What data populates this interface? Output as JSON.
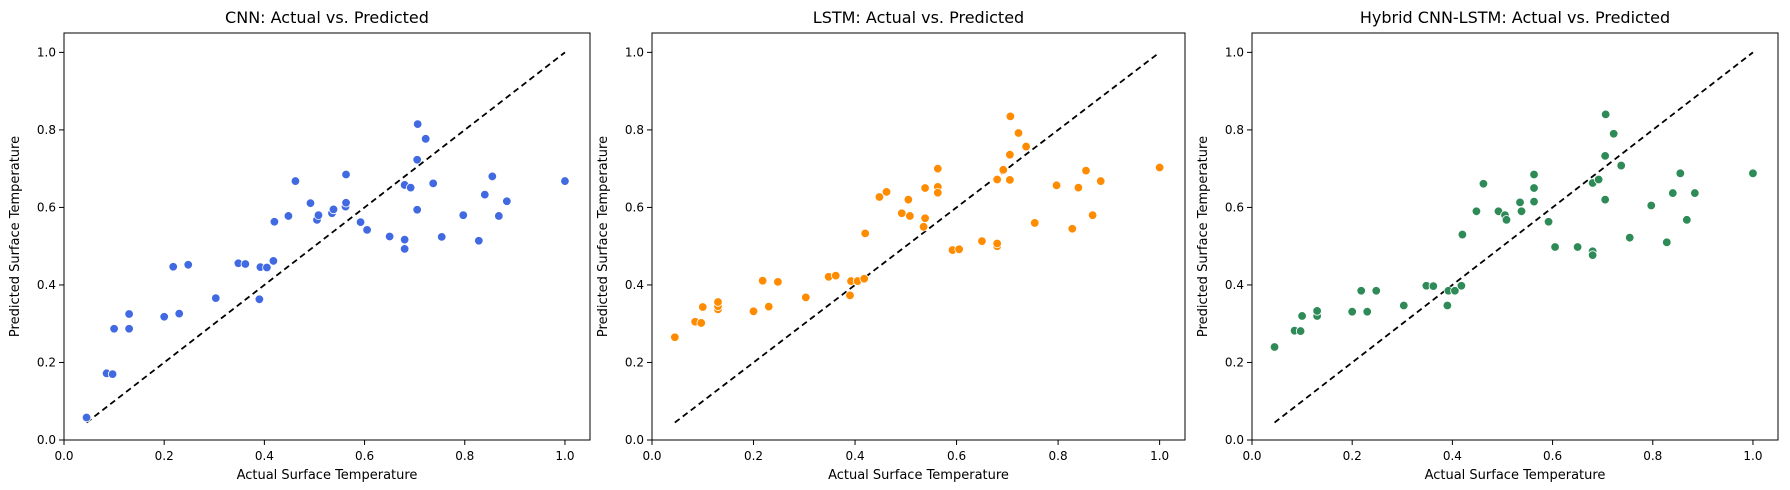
{
  "chart_data": [
    {
      "type": "scatter",
      "title": "CNN: Actual vs. Predicted",
      "xlabel": "Actual Surface Temperature",
      "ylabel": "Predicted Surface Temperature",
      "xlim": [
        0.0,
        1.05
      ],
      "ylim": [
        0.0,
        1.05
      ],
      "xticks": [
        "0.0",
        "0.2",
        "0.4",
        "0.6",
        "0.8",
        "1.0"
      ],
      "yticks": [
        "0.0",
        "0.2",
        "0.4",
        "0.6",
        "0.8",
        "1.0"
      ],
      "grid": false,
      "color": "#4169e1",
      "reference_line": {
        "from": [
          0.045,
          0.045
        ],
        "to": [
          1.0,
          1.0
        ],
        "style": "dashed",
        "color": "#000000"
      },
      "points": [
        [
          0.045,
          0.058
        ],
        [
          0.085,
          0.172
        ],
        [
          0.097,
          0.17
        ],
        [
          0.1,
          0.287
        ],
        [
          0.13,
          0.287
        ],
        [
          0.13,
          0.325
        ],
        [
          0.2,
          0.318
        ],
        [
          0.218,
          0.447
        ],
        [
          0.23,
          0.326
        ],
        [
          0.248,
          0.452
        ],
        [
          0.303,
          0.366
        ],
        [
          0.348,
          0.456
        ],
        [
          0.362,
          0.454
        ],
        [
          0.39,
          0.363
        ],
        [
          0.392,
          0.446
        ],
        [
          0.405,
          0.445
        ],
        [
          0.418,
          0.462
        ],
        [
          0.42,
          0.563
        ],
        [
          0.448,
          0.578
        ],
        [
          0.462,
          0.668
        ],
        [
          0.492,
          0.611
        ],
        [
          0.505,
          0.568
        ],
        [
          0.508,
          0.58
        ],
        [
          0.535,
          0.585
        ],
        [
          0.538,
          0.595
        ],
        [
          0.562,
          0.602
        ],
        [
          0.563,
          0.612
        ],
        [
          0.563,
          0.685
        ],
        [
          0.592,
          0.562
        ],
        [
          0.605,
          0.542
        ],
        [
          0.65,
          0.525
        ],
        [
          0.68,
          0.517
        ],
        [
          0.68,
          0.493
        ],
        [
          0.68,
          0.658
        ],
        [
          0.692,
          0.651
        ],
        [
          0.705,
          0.594
        ],
        [
          0.705,
          0.723
        ],
        [
          0.706,
          0.815
        ],
        [
          0.722,
          0.777
        ],
        [
          0.737,
          0.662
        ],
        [
          0.754,
          0.524
        ],
        [
          0.797,
          0.58
        ],
        [
          0.828,
          0.514
        ],
        [
          0.84,
          0.633
        ],
        [
          0.855,
          0.68
        ],
        [
          0.868,
          0.578
        ],
        [
          0.884,
          0.616
        ],
        [
          1.0,
          0.668
        ]
      ]
    },
    {
      "type": "scatter",
      "title": "LSTM: Actual vs. Predicted",
      "xlabel": "Actual Surface Temperature",
      "ylabel": "Predicted Surface Temperature",
      "xlim": [
        0.0,
        1.05
      ],
      "ylim": [
        0.0,
        1.05
      ],
      "xticks": [
        "0.0",
        "0.2",
        "0.4",
        "0.6",
        "0.8",
        "1.0"
      ],
      "yticks": [
        "0.0",
        "0.2",
        "0.4",
        "0.6",
        "0.8",
        "1.0"
      ],
      "grid": false,
      "color": "#ff8c00",
      "reference_line": {
        "from": [
          0.045,
          0.045
        ],
        "to": [
          1.0,
          1.0
        ],
        "style": "dashed",
        "color": "#000000"
      },
      "points": [
        [
          0.045,
          0.265
        ],
        [
          0.085,
          0.305
        ],
        [
          0.097,
          0.302
        ],
        [
          0.1,
          0.343
        ],
        [
          0.13,
          0.337
        ],
        [
          0.13,
          0.345
        ],
        [
          0.13,
          0.356
        ],
        [
          0.2,
          0.332
        ],
        [
          0.218,
          0.411
        ],
        [
          0.23,
          0.344
        ],
        [
          0.248,
          0.408
        ],
        [
          0.303,
          0.368
        ],
        [
          0.348,
          0.421
        ],
        [
          0.362,
          0.424
        ],
        [
          0.39,
          0.373
        ],
        [
          0.392,
          0.41
        ],
        [
          0.405,
          0.41
        ],
        [
          0.418,
          0.416
        ],
        [
          0.42,
          0.533
        ],
        [
          0.448,
          0.627
        ],
        [
          0.462,
          0.64
        ],
        [
          0.492,
          0.585
        ],
        [
          0.505,
          0.62
        ],
        [
          0.508,
          0.578
        ],
        [
          0.535,
          0.55
        ],
        [
          0.538,
          0.572
        ],
        [
          0.538,
          0.65
        ],
        [
          0.563,
          0.7
        ],
        [
          0.563,
          0.653
        ],
        [
          0.563,
          0.638
        ],
        [
          0.592,
          0.49
        ],
        [
          0.605,
          0.492
        ],
        [
          0.65,
          0.513
        ],
        [
          0.68,
          0.5
        ],
        [
          0.68,
          0.507
        ],
        [
          0.68,
          0.672
        ],
        [
          0.692,
          0.697
        ],
        [
          0.705,
          0.671
        ],
        [
          0.705,
          0.736
        ],
        [
          0.706,
          0.835
        ],
        [
          0.722,
          0.792
        ],
        [
          0.737,
          0.757
        ],
        [
          0.754,
          0.56
        ],
        [
          0.797,
          0.657
        ],
        [
          0.828,
          0.545
        ],
        [
          0.84,
          0.651
        ],
        [
          0.855,
          0.695
        ],
        [
          0.868,
          0.58
        ],
        [
          0.884,
          0.668
        ],
        [
          1.0,
          0.703
        ]
      ]
    },
    {
      "type": "scatter",
      "title": "Hybrid CNN-LSTM: Actual vs. Predicted",
      "xlabel": "Actual Surface Temperature",
      "ylabel": "Predicted Surface Temperature",
      "xlim": [
        0.0,
        1.05
      ],
      "ylim": [
        0.0,
        1.05
      ],
      "xticks": [
        "0.0",
        "0.2",
        "0.4",
        "0.6",
        "0.8",
        "1.0"
      ],
      "yticks": [
        "0.0",
        "0.2",
        "0.4",
        "0.6",
        "0.8",
        "1.0"
      ],
      "grid": false,
      "color": "#2e8b57",
      "reference_line": {
        "from": [
          0.045,
          0.045
        ],
        "to": [
          1.0,
          1.0
        ],
        "style": "dashed",
        "color": "#000000"
      },
      "points": [
        [
          0.045,
          0.24
        ],
        [
          0.085,
          0.282
        ],
        [
          0.097,
          0.281
        ],
        [
          0.1,
          0.32
        ],
        [
          0.13,
          0.32
        ],
        [
          0.13,
          0.333
        ],
        [
          0.2,
          0.331
        ],
        [
          0.218,
          0.385
        ],
        [
          0.23,
          0.331
        ],
        [
          0.248,
          0.385
        ],
        [
          0.303,
          0.347
        ],
        [
          0.348,
          0.398
        ],
        [
          0.362,
          0.397
        ],
        [
          0.39,
          0.347
        ],
        [
          0.392,
          0.385
        ],
        [
          0.405,
          0.385
        ],
        [
          0.418,
          0.398
        ],
        [
          0.42,
          0.53
        ],
        [
          0.448,
          0.59
        ],
        [
          0.462,
          0.661
        ],
        [
          0.492,
          0.59
        ],
        [
          0.505,
          0.58
        ],
        [
          0.508,
          0.568
        ],
        [
          0.535,
          0.613
        ],
        [
          0.538,
          0.59
        ],
        [
          0.563,
          0.685
        ],
        [
          0.563,
          0.65
        ],
        [
          0.563,
          0.615
        ],
        [
          0.592,
          0.563
        ],
        [
          0.605,
          0.498
        ],
        [
          0.65,
          0.498
        ],
        [
          0.68,
          0.487
        ],
        [
          0.68,
          0.477
        ],
        [
          0.68,
          0.663
        ],
        [
          0.692,
          0.672
        ],
        [
          0.705,
          0.62
        ],
        [
          0.705,
          0.733
        ],
        [
          0.706,
          0.84
        ],
        [
          0.722,
          0.79
        ],
        [
          0.737,
          0.708
        ],
        [
          0.754,
          0.522
        ],
        [
          0.797,
          0.605
        ],
        [
          0.828,
          0.51
        ],
        [
          0.84,
          0.637
        ],
        [
          0.855,
          0.688
        ],
        [
          0.868,
          0.568
        ],
        [
          0.884,
          0.637
        ],
        [
          1.0,
          0.688
        ]
      ]
    }
  ]
}
